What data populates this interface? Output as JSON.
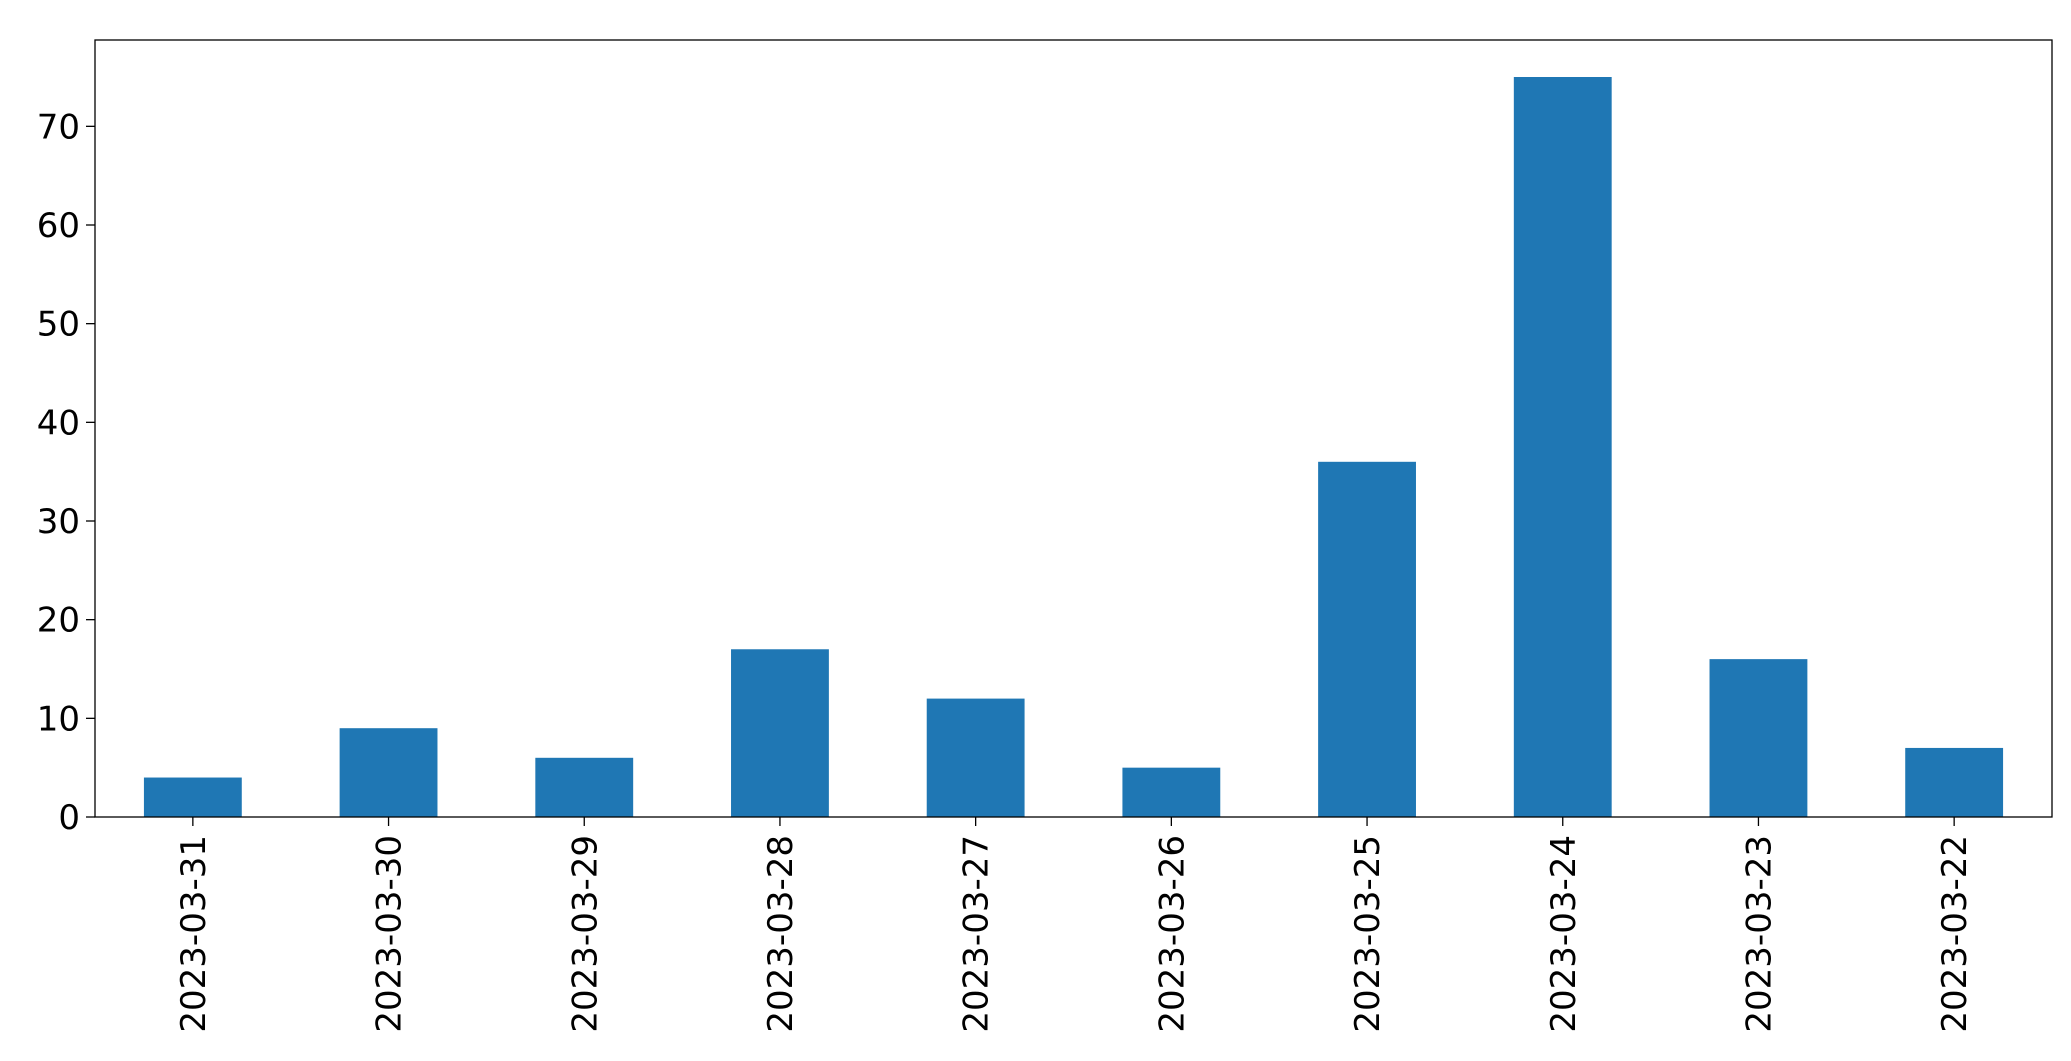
{
  "chart_data": {
    "type": "bar",
    "categories": [
      "2023-03-31",
      "2023-03-30",
      "2023-03-29",
      "2023-03-28",
      "2023-03-27",
      "2023-03-26",
      "2023-03-25",
      "2023-03-24",
      "2023-03-23",
      "2023-03-22"
    ],
    "values": [
      4,
      9,
      6,
      17,
      12,
      5,
      36,
      75,
      16,
      7
    ],
    "color": "#1f77b4",
    "ylim": [
      0,
      78.75
    ],
    "yticks": [
      0,
      10,
      20,
      30,
      40,
      50,
      60,
      70
    ],
    "grid": false
  }
}
